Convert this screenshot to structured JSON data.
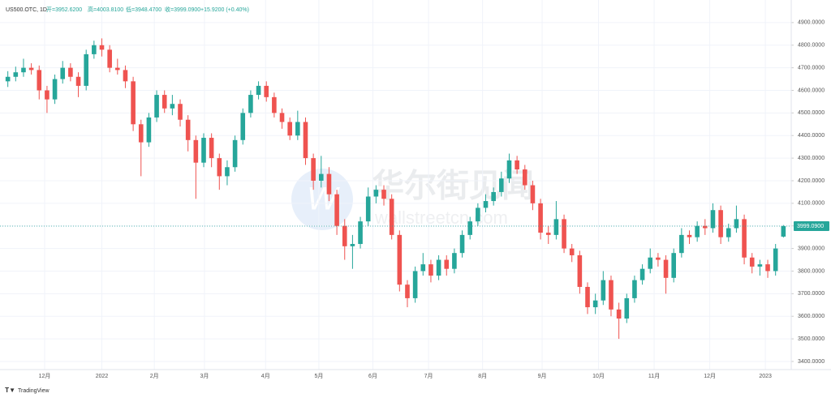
{
  "header": {
    "symbol": "US500.OTC, 1D",
    "open_label": "开=3952.6200",
    "high_label": "高=4003.8100",
    "low_label": "低=3948.4700",
    "close_label": "收=3999.0900",
    "change_label": "+15.9200 (+0.40%)"
  },
  "watermark": {
    "brand": "华尔街见闻",
    "site": "wallstreetcn.com"
  },
  "footer": "TradingView",
  "chart_data": {
    "type": "candlestick",
    "up_color": "#26a69a",
    "down_color": "#ef5350",
    "last_price_label": "3999.0900",
    "grid": true,
    "xlim": [
      -1,
      100
    ],
    "xticks": [
      {
        "value": 4.7,
        "label": "12月"
      },
      {
        "value": 12,
        "label": "2022"
      },
      {
        "value": 18.7,
        "label": "2月"
      },
      {
        "value": 25.1,
        "label": "3月"
      },
      {
        "value": 32.9,
        "label": "4月"
      },
      {
        "value": 39.7,
        "label": "5月"
      },
      {
        "value": 46.6,
        "label": "6月"
      },
      {
        "value": 53.7,
        "label": "7月"
      },
      {
        "value": 60.6,
        "label": "8月"
      },
      {
        "value": 68.2,
        "label": "9月"
      },
      {
        "value": 75.4,
        "label": "10月"
      },
      {
        "value": 82.5,
        "label": "11月"
      },
      {
        "value": 89.6,
        "label": "12月"
      },
      {
        "value": 96.7,
        "label": "2023"
      }
    ],
    "ylim": [
      3364,
      5000
    ],
    "yticks": [
      {
        "value": 3400,
        "label": "3400.0000"
      },
      {
        "value": 3500,
        "label": "3500.0000"
      },
      {
        "value": 3600,
        "label": "3600.0000"
      },
      {
        "value": 3700,
        "label": "3700.0000"
      },
      {
        "value": 3800,
        "label": "3800.0000"
      },
      {
        "value": 3900,
        "label": "3900.0000"
      },
      {
        "value": 4000,
        "label": "4000.0000"
      },
      {
        "value": 4100,
        "label": "4100.0000"
      },
      {
        "value": 4200,
        "label": "4200.0000"
      },
      {
        "value": 4300,
        "label": "4300.0000"
      },
      {
        "value": 4400,
        "label": "4400.0000"
      },
      {
        "value": 4500,
        "label": "4500.0000"
      },
      {
        "value": 4600,
        "label": "4600.0000"
      },
      {
        "value": 4700,
        "label": "4700.0000"
      },
      {
        "value": 4800,
        "label": "4800.0000"
      },
      {
        "value": 4900,
        "label": "4900.0000"
      }
    ],
    "open": [
      4640,
      4660,
      4680,
      4700,
      4690,
      4600,
      4560,
      4650,
      4700,
      4660,
      4620,
      4760,
      4800,
      4780,
      4700,
      4690,
      4640,
      4450,
      4370,
      4480,
      4580,
      4520,
      4540,
      4470,
      4380,
      4280,
      4390,
      4300,
      4220,
      4260,
      4380,
      4500,
      4580,
      4620,
      4570,
      4500,
      4460,
      4400,
      4460,
      4300,
      4200,
      4230,
      4140,
      4000,
      3910,
      3920,
      4020,
      4130,
      4160,
      4120,
      3960,
      3740,
      3680,
      3800,
      3830,
      3780,
      3850,
      3810,
      3880,
      3960,
      4020,
      4080,
      4110,
      4150,
      4210,
      4290,
      4250,
      4180,
      4100,
      3970,
      3960,
      4030,
      3900,
      3870,
      3730,
      3640,
      3670,
      3760,
      3630,
      3590,
      3680,
      3760,
      3810,
      3860,
      3850,
      3770,
      3880,
      3960,
      3950,
      4000,
      3990,
      4070,
      3950,
      3990,
      4030,
      3860,
      3820,
      3830,
      3800,
      3952.62
    ],
    "high": [
      4685,
      4705,
      4740,
      4720,
      4710,
      4620,
      4670,
      4730,
      4720,
      4680,
      4780,
      4820,
      4830,
      4800,
      4740,
      4710,
      4660,
      4470,
      4500,
      4600,
      4600,
      4580,
      4560,
      4490,
      4400,
      4410,
      4410,
      4320,
      4290,
      4400,
      4520,
      4600,
      4640,
      4640,
      4590,
      4520,
      4480,
      4510,
      4480,
      4320,
      4310,
      4260,
      4160,
      4030,
      3960,
      4040,
      4170,
      4180,
      4180,
      4140,
      3980,
      3760,
      3820,
      3880,
      3850,
      3870,
      3870,
      3900,
      3980,
      4040,
      4100,
      4140,
      4170,
      4240,
      4320,
      4310,
      4270,
      4200,
      4120,
      4000,
      4110,
      4050,
      3920,
      3890,
      3750,
      3700,
      3800,
      3780,
      3660,
      3700,
      3780,
      3830,
      3900,
      3880,
      3870,
      3900,
      3990,
      3980,
      4020,
      4030,
      4100,
      4090,
      4010,
      4090,
      4050,
      3880,
      3850,
      3850,
      3920,
      4003.81
    ],
    "low": [
      4615,
      4640,
      4660,
      4670,
      4560,
      4500,
      4540,
      4630,
      4640,
      4570,
      4600,
      4740,
      4750,
      4680,
      4670,
      4610,
      4420,
      4220,
      4350,
      4460,
      4500,
      4490,
      4440,
      4330,
      4120,
      4260,
      4260,
      4160,
      4180,
      4240,
      4360,
      4480,
      4560,
      4550,
      4480,
      4430,
      4380,
      4380,
      4270,
      4160,
      4170,
      4110,
      3960,
      3850,
      3810,
      3900,
      4000,
      4100,
      4090,
      3940,
      3710,
      3640,
      3660,
      3780,
      3750,
      3760,
      3780,
      3790,
      3860,
      3940,
      4000,
      4060,
      4090,
      4130,
      4190,
      4230,
      4160,
      4070,
      3940,
      3920,
      3940,
      3880,
      3840,
      3700,
      3610,
      3610,
      3650,
      3600,
      3500,
      3570,
      3660,
      3740,
      3790,
      3820,
      3700,
      3750,
      3860,
      3920,
      3930,
      3960,
      3970,
      3920,
      3930,
      3970,
      3830,
      3790,
      3780,
      3770,
      3780,
      3948.47
    ],
    "close": [
      4660,
      4680,
      4700,
      4690,
      4600,
      4560,
      4650,
      4700,
      4660,
      4620,
      4760,
      4800,
      4780,
      4700,
      4690,
      4640,
      4450,
      4370,
      4480,
      4580,
      4520,
      4540,
      4470,
      4380,
      4280,
      4390,
      4300,
      4220,
      4260,
      4380,
      4500,
      4580,
      4620,
      4570,
      4500,
      4460,
      4400,
      4460,
      4300,
      4200,
      4230,
      4140,
      4000,
      3910,
      3920,
      4020,
      4130,
      4160,
      4120,
      3960,
      3740,
      3680,
      3800,
      3830,
      3780,
      3850,
      3810,
      3880,
      3960,
      4020,
      4080,
      4110,
      4150,
      4210,
      4290,
      4250,
      4180,
      4100,
      3970,
      3960,
      4030,
      3900,
      3870,
      3730,
      3640,
      3670,
      3760,
      3630,
      3590,
      3680,
      3760,
      3810,
      3860,
      3850,
      3770,
      3880,
      3960,
      3950,
      4000,
      3990,
      4070,
      3950,
      3990,
      4030,
      3860,
      3820,
      3830,
      3800,
      3900,
      3999.09
    ]
  }
}
